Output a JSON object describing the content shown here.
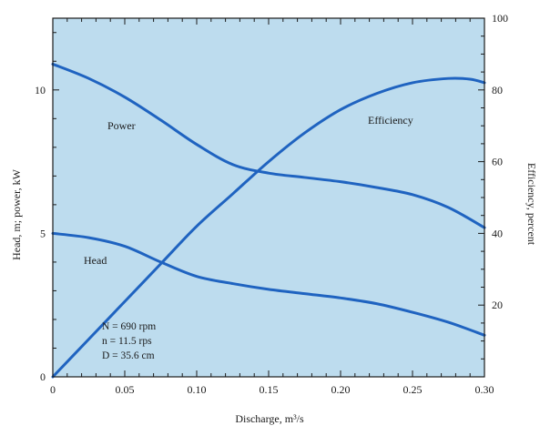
{
  "chart_data": {
    "type": "line",
    "title": "",
    "xlabel": "Discharge, m³/s",
    "ylabel_left": "Head, m; power, kW",
    "ylabel_right": "Efficiency, percent",
    "xlim": [
      0,
      0.3
    ],
    "ylim_left": [
      0,
      12.5
    ],
    "ylim_right": [
      0,
      100
    ],
    "x_ticks": [
      0,
      0.05,
      0.1,
      0.15,
      0.2,
      0.25,
      0.3
    ],
    "x_tick_labels": [
      "0",
      "0.05",
      "0.10",
      "0.15",
      "0.20",
      "0.25",
      "0.30"
    ],
    "y_left_ticks": [
      0,
      5,
      10
    ],
    "y_left_tick_labels": [
      "0",
      "5",
      "10"
    ],
    "y_right_ticks": [
      20,
      40,
      60,
      80,
      100
    ],
    "y_right_tick_labels": [
      "20",
      "40",
      "60",
      "80",
      "100"
    ],
    "grid": false,
    "background_color": "#bddcee",
    "line_color": "#1f63c0",
    "series": [
      {
        "name": "Power",
        "axis": "left",
        "x": [
          0,
          0.025,
          0.05,
          0.075,
          0.1,
          0.125,
          0.15,
          0.175,
          0.2,
          0.225,
          0.25,
          0.275,
          0.3
        ],
        "y": [
          10.9,
          10.4,
          9.75,
          8.95,
          8.1,
          7.4,
          7.1,
          6.95,
          6.8,
          6.6,
          6.35,
          5.9,
          5.2
        ]
      },
      {
        "name": "Head",
        "axis": "left",
        "x": [
          0,
          0.025,
          0.05,
          0.075,
          0.1,
          0.125,
          0.15,
          0.175,
          0.2,
          0.225,
          0.25,
          0.275,
          0.3
        ],
        "y": [
          5.0,
          4.85,
          4.55,
          4.0,
          3.5,
          3.25,
          3.05,
          2.9,
          2.75,
          2.55,
          2.25,
          1.9,
          1.45
        ]
      },
      {
        "name": "Efficiency",
        "axis": "right",
        "x": [
          0,
          0.025,
          0.05,
          0.075,
          0.1,
          0.125,
          0.15,
          0.175,
          0.2,
          0.225,
          0.25,
          0.275,
          0.29,
          0.3
        ],
        "y": [
          0,
          10.5,
          21,
          31.5,
          42,
          51,
          60,
          68,
          74.5,
          79,
          82,
          83.2,
          83,
          82
        ]
      }
    ],
    "curve_labels": {
      "power": "Power",
      "head": "Head",
      "efficiency": "Efficiency"
    },
    "annotations": {
      "n_rpm": "N = 690 rpm",
      "n_rps": "n = 11.5 rps",
      "d": "D = 35.6 cm"
    }
  }
}
